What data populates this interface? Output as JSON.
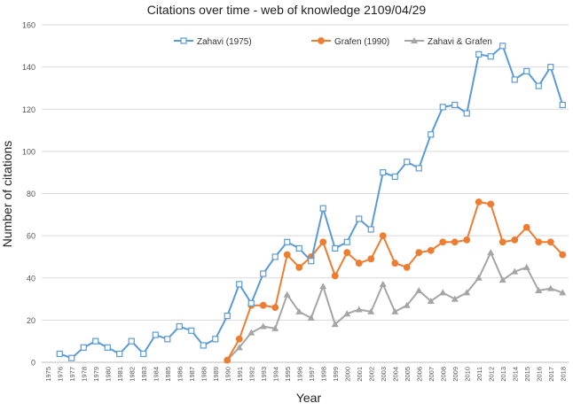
{
  "chart_data": {
    "type": "line",
    "title": "Citations over time - web of knowledge 2109/04/29",
    "xlabel": "Year",
    "ylabel": "Number of citations",
    "ylim": [
      0,
      160
    ],
    "yticks": [
      0,
      20,
      40,
      60,
      80,
      100,
      120,
      140,
      160
    ],
    "grid": true,
    "legend_position": "top-center",
    "categories": [
      "1975",
      "1976",
      "1977",
      "1978",
      "1979",
      "1980",
      "1981",
      "1982",
      "1983",
      "1984",
      "1985",
      "1986",
      "1987",
      "1988",
      "1989",
      "1990",
      "1991",
      "1992",
      "1993",
      "1994",
      "1995",
      "1996",
      "1997",
      "1998",
      "1999",
      "2000",
      "2001",
      "2002",
      "2003",
      "2004",
      "2005",
      "2006",
      "2007",
      "2008",
      "2009",
      "2010",
      "2011",
      "2012",
      "2013",
      "2014",
      "2015",
      "2016",
      "2017",
      "2018"
    ],
    "series": [
      {
        "name": "Zahavi (1975)",
        "color": "#5b9bd5",
        "marker": "square",
        "values": [
          null,
          4,
          2,
          7,
          10,
          7,
          4,
          10,
          4,
          13,
          11,
          17,
          15,
          8,
          11,
          22,
          37,
          28,
          42,
          50,
          57,
          54,
          48,
          73,
          54,
          57,
          68,
          63,
          90,
          88,
          95,
          92,
          108,
          121,
          122,
          118,
          146,
          145,
          150,
          134,
          138,
          131,
          140,
          122
        ]
      },
      {
        "name": "Grafen (1990)",
        "color": "#ed7d31",
        "marker": "circle",
        "values": [
          null,
          null,
          null,
          null,
          null,
          null,
          null,
          null,
          null,
          null,
          null,
          null,
          null,
          null,
          null,
          1,
          11,
          27,
          27,
          26,
          51,
          45,
          50,
          57,
          41,
          52,
          47,
          49,
          60,
          47,
          45,
          52,
          53,
          57,
          57,
          58,
          76,
          75,
          57,
          58,
          64,
          57,
          57,
          51
        ]
      },
      {
        "name": "Zahavi & Grafen",
        "color": "#a5a5a5",
        "marker": "triangle",
        "values": [
          null,
          null,
          null,
          null,
          null,
          null,
          null,
          null,
          null,
          null,
          null,
          null,
          null,
          null,
          null,
          1,
          7,
          14,
          17,
          16,
          32,
          24,
          21,
          36,
          18,
          23,
          25,
          24,
          37,
          24,
          27,
          34,
          29,
          33,
          30,
          33,
          40,
          52,
          39,
          43,
          45,
          34,
          35,
          33
        ]
      }
    ]
  }
}
